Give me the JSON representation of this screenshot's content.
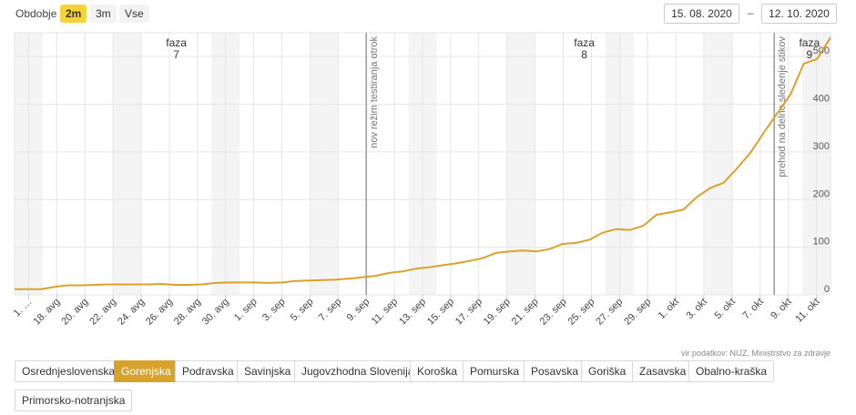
{
  "period": {
    "label": "Obdobje",
    "ranges": [
      {
        "label": "2m",
        "active": true
      },
      {
        "label": "3m",
        "active": false
      },
      {
        "label": "Vse",
        "active": false
      }
    ],
    "date_from": "15. 08. 2020",
    "date_separator": "–",
    "date_to": "12. 10. 2020"
  },
  "source": "vir podatkov: NIJZ, Ministrstvo za zdravje",
  "regions": [
    {
      "label": "Osrednjeslovenska",
      "active": false
    },
    {
      "label": "Gorenjska",
      "active": true
    },
    {
      "label": "Podravska",
      "active": false
    },
    {
      "label": "Savinjska",
      "active": false
    },
    {
      "label": "Jugovzhodna Slovenija",
      "active": false
    },
    {
      "label": "Koroška",
      "active": false
    },
    {
      "label": "Pomurska",
      "active": false
    },
    {
      "label": "Posavska",
      "active": false
    },
    {
      "label": "Goriška",
      "active": false
    },
    {
      "label": "Zasavska",
      "active": false
    },
    {
      "label": "Obalno-kraška",
      "active": false
    },
    {
      "label": "Primorsko-notranjska",
      "active": false
    }
  ],
  "colors": {
    "line": "#d9a22b",
    "active_range": "#f6d23a",
    "active_region": "#d9a22b",
    "weekend_band": "#f4f4f4",
    "grid": "#e6e6e6",
    "annotation_line": "#999999"
  },
  "chart_data": {
    "type": "line",
    "x_start": "2020-08-15",
    "x_end": "2020-10-12",
    "x_tick_labels": [
      "1. …",
      "18. avg",
      "20. avg",
      "22. avg",
      "24. avg",
      "26. avg",
      "28. avg",
      "30. avg",
      "1. sep",
      "3. sep",
      "5. sep",
      "7. sep",
      "9. sep",
      "11. sep",
      "13. sep",
      "15. sep",
      "17. sep",
      "19. sep",
      "21. sep",
      "23. sep",
      "25. sep",
      "27. sep",
      "29. sep",
      "1. okt",
      "3. okt",
      "5. okt",
      "7. okt",
      "9. okt",
      "11. okt"
    ],
    "ylim": [
      0,
      550
    ],
    "y_ticks": [
      0,
      100,
      200,
      300,
      400,
      500
    ],
    "grid": true,
    "series": [
      {
        "values": [
          12,
          12,
          12,
          17,
          20,
          20,
          21,
          22,
          22,
          22,
          22,
          23,
          21,
          21,
          22,
          25,
          26,
          26,
          26,
          25,
          26,
          29,
          30,
          31,
          32,
          34,
          37,
          40,
          46,
          49,
          55,
          58,
          62,
          66,
          71,
          77,
          88,
          91,
          93,
          91,
          96,
          107,
          109,
          116,
          131,
          138,
          136,
          145,
          168,
          173,
          179,
          205,
          224,
          235,
          265,
          298,
          340,
          380,
          420,
          485,
          495,
          540
        ]
      }
    ],
    "annotations": {
      "phases": [
        {
          "name": "faza",
          "number": "7",
          "date": "2020-08-26"
        },
        {
          "name": "faza",
          "number": "8",
          "date": "2020-09-24"
        },
        {
          "name": "faza",
          "number": "9",
          "date": "2020-10-10"
        }
      ],
      "vertical_lines": [
        {
          "label": "nov režim testiranja otrok",
          "date": "2020-09-09"
        },
        {
          "label": "prehod na delno sledenje stikov",
          "date": "2020-10-08"
        }
      ]
    }
  }
}
